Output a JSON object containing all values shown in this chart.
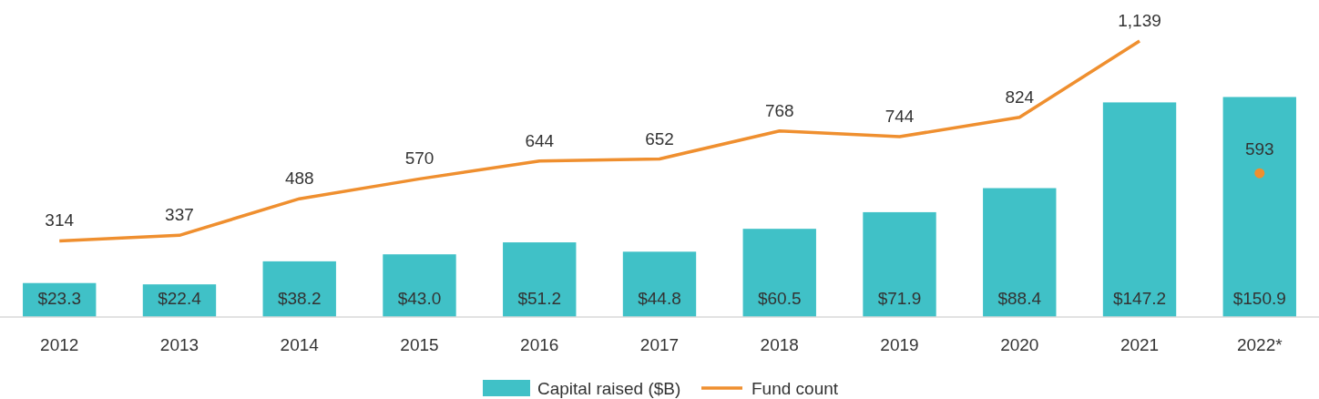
{
  "chart_data": {
    "type": "bar",
    "categories": [
      "2012",
      "2013",
      "2014",
      "2015",
      "2016",
      "2017",
      "2018",
      "2019",
      "2020",
      "2021",
      "2022*"
    ],
    "series": [
      {
        "name": "Capital raised ($B)",
        "color": "#40c1c7",
        "values": [
          23.3,
          22.4,
          38.2,
          43.0,
          51.2,
          44.8,
          60.5,
          71.9,
          88.4,
          147.2,
          150.9
        ],
        "value_labels": [
          "$23.3",
          "$22.4",
          "$38.2",
          "$43.0",
          "$51.2",
          "$44.8",
          "$60.5",
          "$71.9",
          "$88.4",
          "$147.2",
          "$150.9"
        ]
      },
      {
        "name": "Fund count",
        "type": "line",
        "axis": "y2",
        "color": "#ef8f2f",
        "values": [
          314,
          337,
          488,
          570,
          644,
          652,
          768,
          744,
          824,
          1139,
          null
        ],
        "value_labels": [
          "314",
          "337",
          "488",
          "570",
          "644",
          "652",
          "768",
          "744",
          "824",
          "1,139",
          null
        ]
      },
      {
        "type": "scatter",
        "axis": "y2",
        "color": "#ef8f2f",
        "x": [
          "2022*"
        ],
        "values": [
          593
        ],
        "value_labels": [
          "593"
        ],
        "marker": "circle"
      }
    ],
    "tick_labels": "x",
    "legend": "bottom",
    "data_labels": true
  }
}
